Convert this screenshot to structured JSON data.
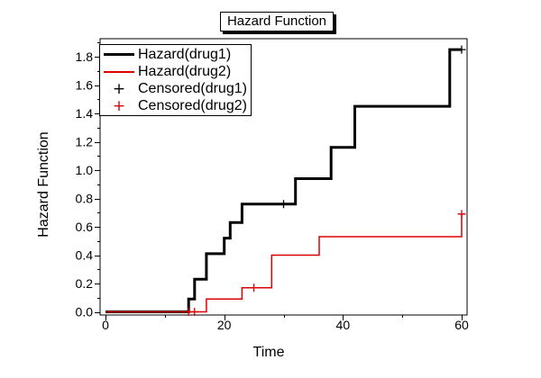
{
  "window": {
    "background": "#ffffff"
  },
  "chart_data": {
    "type": "line",
    "subtype": "step-function-hazard-plot",
    "title": "Hazard Function",
    "xlabel": "Time",
    "ylabel": "Hazard Function",
    "xlim": [
      0,
      60
    ],
    "ylim": [
      0,
      1.8
    ],
    "grid": false,
    "legend_position": "top-left-inside",
    "axis_color": "#000000",
    "x_ticks": {
      "major": [
        0,
        20,
        40,
        60
      ],
      "minor": [
        10,
        30,
        50
      ]
    },
    "y_ticks": {
      "major": [
        0.0,
        0.2,
        0.4,
        0.6,
        0.8,
        1.0,
        1.2,
        1.4,
        1.6,
        1.8
      ],
      "minor": [
        0.1,
        0.3,
        0.5,
        0.7,
        0.9,
        1.1,
        1.3,
        1.5,
        1.7,
        1.9
      ]
    },
    "series": [
      {
        "name": "Hazard(drug1)",
        "type": "step",
        "color": "#000000",
        "line_width": 3,
        "points": [
          [
            0,
            0
          ],
          [
            14,
            0.09
          ],
          [
            15,
            0.23
          ],
          [
            17,
            0.41
          ],
          [
            20,
            0.52
          ],
          [
            21,
            0.63
          ],
          [
            23,
            0.76
          ],
          [
            32,
            0.94
          ],
          [
            38,
            1.16
          ],
          [
            42,
            1.45
          ],
          [
            58,
            1.85
          ]
        ],
        "end_time": 60
      },
      {
        "name": "Hazard(drug2)",
        "type": "step",
        "color": "#dd0000",
        "line_width": 1.5,
        "points": [
          [
            0,
            0
          ],
          [
            17,
            0.09
          ],
          [
            23,
            0.17
          ],
          [
            28,
            0.4
          ],
          [
            36,
            0.53
          ],
          [
            60,
            0.69
          ]
        ],
        "end_time": 60.4
      },
      {
        "name": "Censored(drug1)",
        "type": "plus-markers",
        "color": "#000000",
        "marker_size": 9,
        "points": [
          [
            30,
            0.76
          ],
          [
            60,
            1.85
          ]
        ]
      },
      {
        "name": "Censored(drug2)",
        "type": "plus-markers",
        "color": "#dd0000",
        "marker_size": 9,
        "points": [
          [
            14,
            0
          ],
          [
            15,
            0
          ],
          [
            25,
            0.17
          ],
          [
            60,
            0.69
          ]
        ]
      }
    ]
  }
}
